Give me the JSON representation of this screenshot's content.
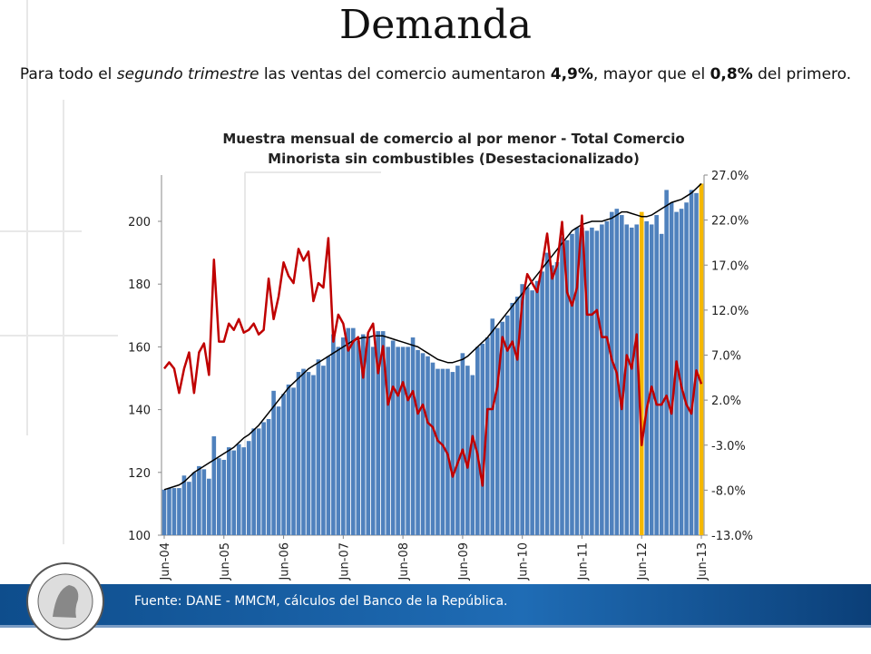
{
  "slide_title": "Demanda",
  "summary": [
    "Para todo el ",
    "segundo trimestre",
    " las ventas del comercio aumentaron ",
    "4,9%",
    ", mayor que el ",
    "0,8%",
    " del primero."
  ],
  "footer": "Fuente: DANE - MMCM, cálculos del Banco de la República.",
  "chart_data": {
    "type": "bar",
    "title": [
      "Muestra mensual de comercio al por menor - Total Comercio",
      "Minorista sin combustibles (Desestacionalizado)"
    ],
    "categories": [
      "Jun-04",
      null,
      null,
      null,
      null,
      null,
      null,
      null,
      null,
      null,
      null,
      null,
      "Jun-05",
      null,
      null,
      null,
      null,
      null,
      null,
      null,
      null,
      null,
      null,
      null,
      "Jun-06",
      null,
      null,
      null,
      null,
      null,
      null,
      null,
      null,
      null,
      null,
      null,
      "Jun-07",
      null,
      null,
      null,
      null,
      null,
      null,
      null,
      null,
      null,
      null,
      null,
      "Jun-08",
      null,
      null,
      null,
      null,
      null,
      null,
      null,
      null,
      null,
      null,
      null,
      "Jun-09",
      null,
      null,
      null,
      null,
      null,
      null,
      null,
      null,
      null,
      null,
      null,
      "Jun-10",
      null,
      null,
      null,
      null,
      null,
      null,
      null,
      null,
      null,
      null,
      null,
      "Jun-11",
      null,
      null,
      null,
      null,
      null,
      null,
      null,
      null,
      null,
      null,
      null,
      "Jun-12",
      null,
      null,
      null,
      null,
      null,
      null,
      null,
      null,
      null,
      null,
      null,
      "Jun-13"
    ],
    "series": [
      {
        "kind": "bar",
        "color": "#4f81bd",
        "highlight": {
          "color": "#f5b800",
          "indices": [
            96,
            108
          ]
        },
        "values": [
          114.5,
          115,
          115,
          115,
          119,
          117,
          120,
          122,
          121,
          118,
          131.5,
          124.5,
          124,
          128,
          127,
          129,
          128,
          130,
          134,
          134,
          136,
          137,
          146,
          141,
          145,
          148,
          147,
          152,
          153,
          152,
          151,
          156,
          154,
          157,
          164,
          160,
          163,
          166,
          166,
          162,
          164,
          163,
          160,
          165,
          165,
          160,
          162,
          160,
          160,
          160,
          163,
          159,
          158,
          157,
          155,
          153,
          153,
          153,
          152,
          154,
          158,
          154,
          151,
          160,
          161,
          163,
          169,
          166,
          168,
          170,
          174,
          176,
          180,
          179,
          178,
          181,
          184,
          190,
          186,
          187,
          195,
          194,
          196,
          198,
          198,
          197,
          198,
          197,
          199,
          200,
          203,
          204,
          202,
          199,
          198,
          199,
          203,
          200,
          199,
          202,
          196,
          210,
          206,
          203,
          204,
          206,
          210,
          209,
          212
        ]
      },
      {
        "kind": "line",
        "color": "#000000",
        "values": [
          114.5,
          115,
          115.5,
          116,
          117,
          118.5,
          120,
          121,
          122,
          123,
          124,
          125,
          126,
          127,
          128,
          129.5,
          131,
          132,
          133.5,
          135,
          137,
          139,
          141,
          143,
          145,
          147,
          148.5,
          150,
          151.5,
          153,
          154,
          155,
          156,
          157,
          158,
          159,
          160,
          161,
          162,
          162.5,
          163,
          163,
          163.5,
          163.5,
          163.5,
          163,
          162.5,
          162,
          161.5,
          161,
          160.5,
          160,
          159,
          158,
          157,
          156,
          155.5,
          155,
          155,
          155.5,
          156,
          157,
          158.5,
          160,
          161.5,
          163,
          165,
          167,
          169,
          171,
          173,
          175,
          177,
          179,
          181,
          183,
          185,
          187,
          189,
          191,
          193,
          195,
          197,
          198,
          199,
          199.5,
          200,
          200,
          200,
          200.5,
          201,
          202,
          203,
          203,
          202.5,
          202,
          201.5,
          201.5,
          202,
          203,
          204,
          205,
          206,
          206.5,
          207,
          208,
          209,
          210.5,
          212
        ]
      },
      {
        "kind": "line",
        "color": "#c00000",
        "axis": "y2",
        "values": [
          5.5,
          6.2,
          5.5,
          2.8,
          5.5,
          7.3,
          2.8,
          7.3,
          8.3,
          4.8,
          17.6,
          8.5,
          8.5,
          10.5,
          9.8,
          11,
          9.5,
          9.8,
          10.5,
          9.3,
          9.8,
          15.5,
          11,
          13.5,
          17.3,
          15.8,
          15,
          18.8,
          17.5,
          18.5,
          13,
          15,
          14.5,
          20,
          8.5,
          11.5,
          10.5,
          7.5,
          8.5,
          9,
          4.5,
          9.5,
          10.5,
          5,
          8,
          1.5,
          3.5,
          2.5,
          4,
          2,
          3,
          0.5,
          1.5,
          -0.5,
          -1,
          -2.5,
          -3,
          -4,
          -6.5,
          -5,
          -3.5,
          -5.5,
          -2,
          -4,
          -7.5,
          1,
          1,
          3.5,
          9,
          7.5,
          8.5,
          6.5,
          13,
          16,
          15,
          14,
          17,
          20.5,
          15.5,
          17,
          21.8,
          14,
          12.5,
          14.5,
          22.5,
          11.5,
          11.5,
          12,
          9,
          9,
          6.5,
          5,
          1,
          7,
          5.5,
          9.3,
          -3,
          1,
          3.5,
          1.5,
          1.5,
          2.5,
          0.5,
          6.3,
          3.5,
          1.5,
          0.5,
          5.3,
          3.8
        ]
      }
    ],
    "ylim": [
      100,
      215
    ],
    "yticks": [
      100,
      120,
      140,
      160,
      180,
      200
    ],
    "y2lim": [
      -13,
      27
    ],
    "y2ticks": [
      {
        "value": -13,
        "label": "-13.0%"
      },
      {
        "value": -8,
        "label": "-8.0%"
      },
      {
        "value": -3,
        "label": "-3.0%"
      },
      {
        "value": 2,
        "label": "2.0%"
      },
      {
        "value": 7,
        "label": "7.0%"
      },
      {
        "value": 12,
        "label": "12.0%"
      },
      {
        "value": 17,
        "label": "17.0%"
      },
      {
        "value": 22,
        "label": "22.0%"
      },
      {
        "value": 27,
        "label": "27.0%"
      }
    ]
  }
}
